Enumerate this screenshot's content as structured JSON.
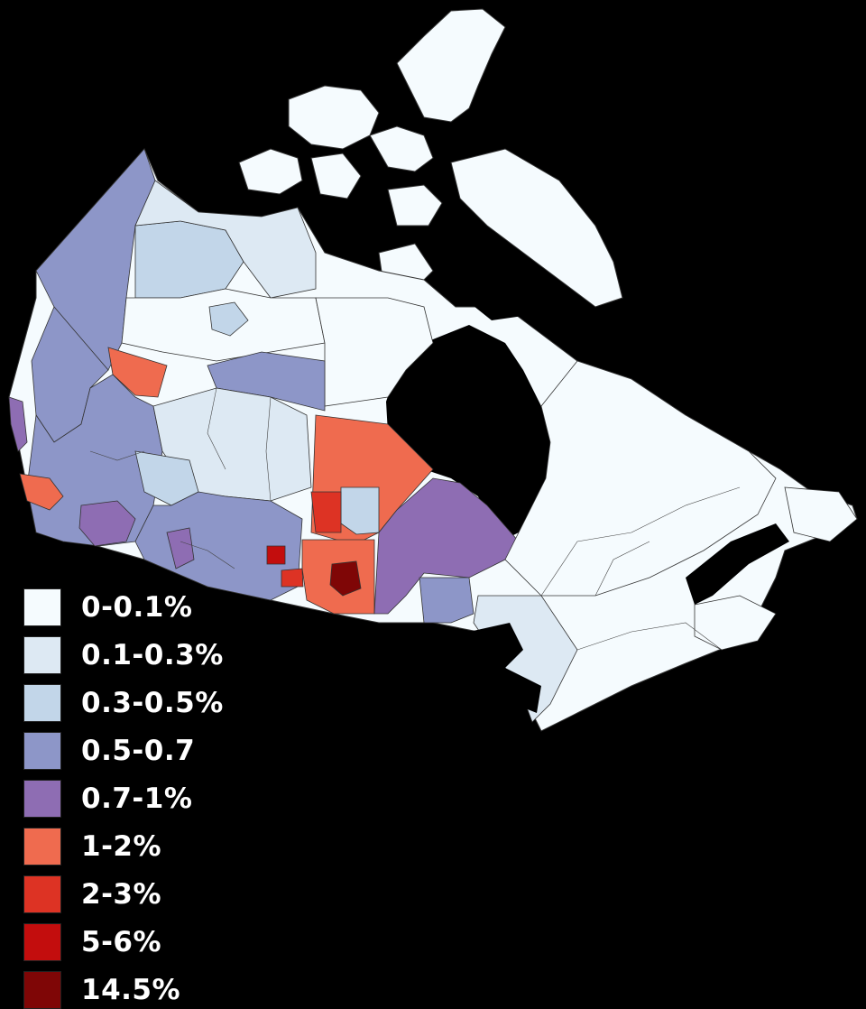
{
  "legend": [
    {
      "label": "0-0.1%",
      "color": "#f5fbfe"
    },
    {
      "label": "0.1-0.3%",
      "color": "#dde9f3"
    },
    {
      "label": "0.3-0.5%",
      "color": "#c2d6e9"
    },
    {
      "label": "0.5-0.7",
      "color": "#8d96c8"
    },
    {
      "label": "0.7-1%",
      "color": "#8e6db3"
    },
    {
      "label": "1-2%",
      "color": "#ef6b4f"
    },
    {
      "label": "2-3%",
      "color": "#dd3324"
    },
    {
      "label": "5-6%",
      "color": "#c30d0d"
    },
    {
      "label": "14.5%",
      "color": "#7f0606"
    }
  ]
}
